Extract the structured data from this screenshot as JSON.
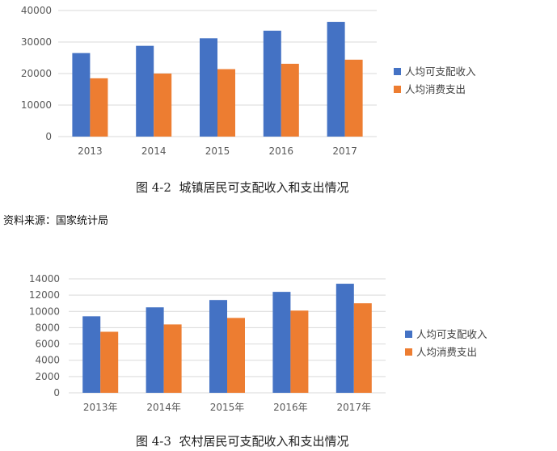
{
  "colors": {
    "income": "#4472C4",
    "expense": "#ED7D31",
    "grid": "#D9D9D9",
    "axis_text": "#595959"
  },
  "source_note": "资料来源：国家统计局",
  "chart_data": [
    {
      "type": "bar",
      "caption": "图 4-2  城镇居民可支配收入和支出情况",
      "categories": [
        "2013",
        "2014",
        "2015",
        "2016",
        "2017"
      ],
      "series": [
        {
          "name": "人均可支配收入",
          "values": [
            26500,
            28800,
            31200,
            33600,
            36400
          ]
        },
        {
          "name": "人均消费支出",
          "values": [
            18500,
            20000,
            21400,
            23100,
            24400
          ]
        }
      ],
      "ylim": [
        0,
        40000
      ],
      "yticks": [
        0,
        10000,
        20000,
        30000,
        40000
      ],
      "grid": true,
      "legend": "right"
    },
    {
      "type": "bar",
      "caption": "图 4-3  农村居民可支配收入和支出情况",
      "categories": [
        "2013年",
        "2014年",
        "2015年",
        "2016年",
        "2017年"
      ],
      "series": [
        {
          "name": "人均可支配收入",
          "values": [
            9400,
            10500,
            11400,
            12400,
            13400
          ]
        },
        {
          "name": "人均消费支出",
          "values": [
            7500,
            8400,
            9200,
            10100,
            11000
          ]
        }
      ],
      "ylim": [
        0,
        14000
      ],
      "yticks": [
        0,
        2000,
        4000,
        6000,
        8000,
        10000,
        12000,
        14000
      ],
      "grid": true,
      "legend": "right"
    }
  ]
}
